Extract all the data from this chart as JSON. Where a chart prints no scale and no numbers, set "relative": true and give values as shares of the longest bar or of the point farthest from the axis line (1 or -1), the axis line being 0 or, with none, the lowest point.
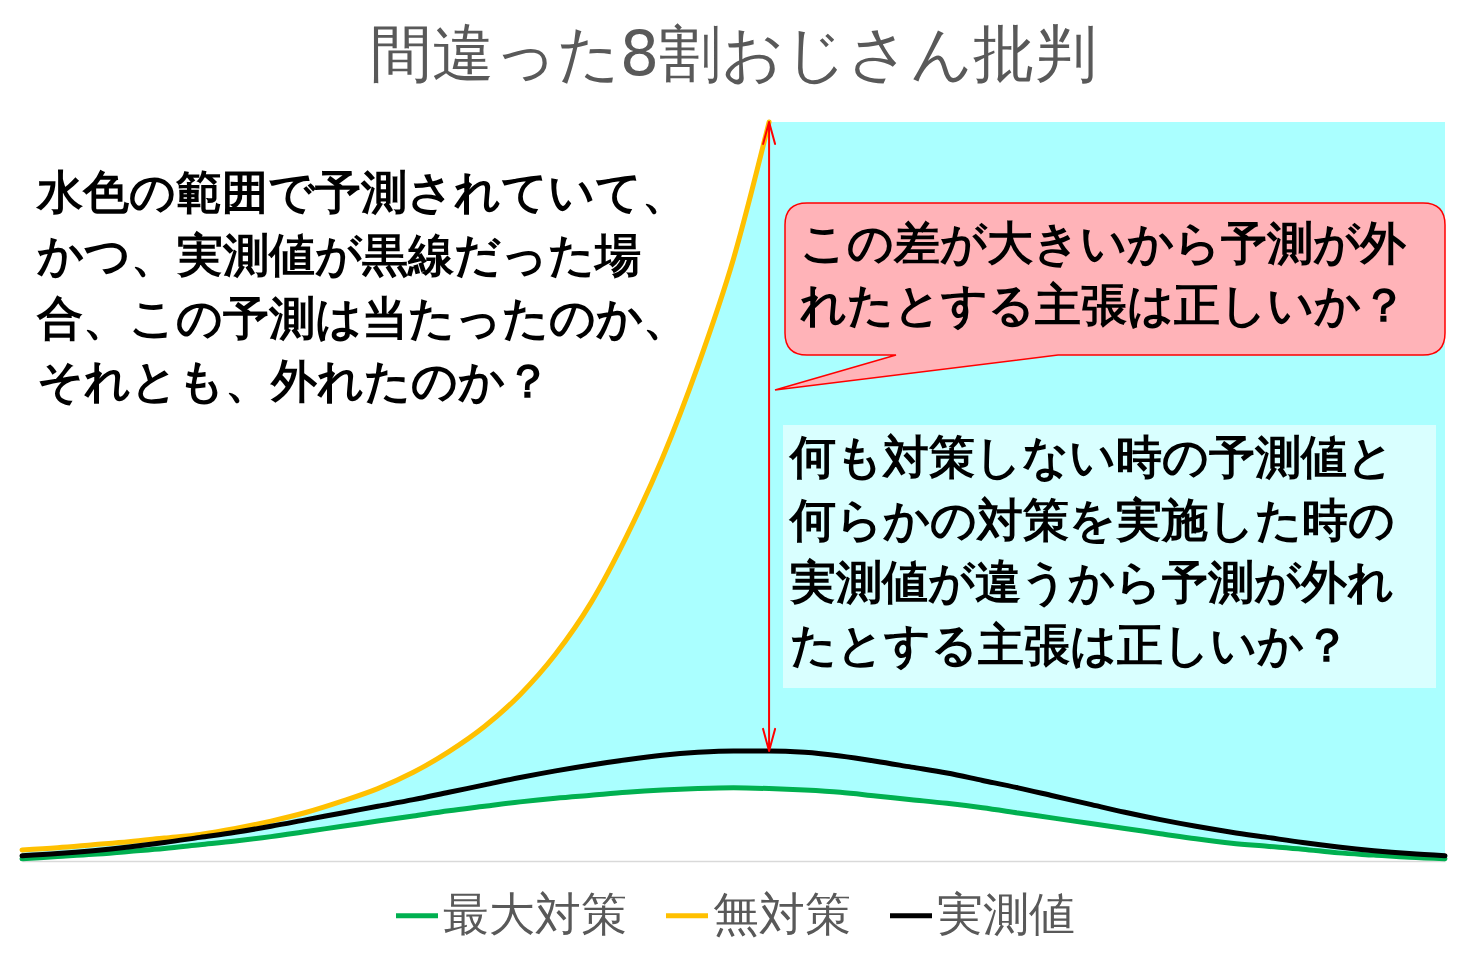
{
  "chart_data": {
    "type": "line",
    "title": "間違った8割おじさん批判",
    "relative": true,
    "categories": [
      null,
      null,
      null,
      null,
      null,
      null,
      null,
      null,
      null,
      null,
      null,
      null,
      null,
      null,
      null,
      null,
      null,
      null,
      null,
      null,
      null,
      null,
      null,
      null,
      null,
      null,
      null,
      null,
      null,
      null,
      null,
      null,
      null,
      null,
      null,
      null,
      null,
      null,
      null,
      null,
      null
    ],
    "series": [
      {
        "color": "#aaffff",
        "values": [
          null,
          null,
          null,
          null,
          null,
          null,
          null,
          null,
          null,
          null,
          null,
          null,
          null,
          null,
          null,
          null,
          null,
          null,
          null,
          null,
          null,
          null,
          null,
          null,
          null,
          null,
          null,
          null,
          null,
          null,
          null,
          null,
          null,
          null,
          null,
          null,
          null,
          null,
          null,
          null,
          null
        ],
        "upper": [
          0.015,
          0.018,
          0.022,
          0.026,
          0.031,
          0.036,
          0.044,
          0.054,
          0.066,
          0.081,
          0.098,
          0.12,
          0.148,
          0.182,
          0.225,
          0.28,
          0.35,
          0.44,
          0.545,
          0.67,
          0.815,
          1.0,
          1.0,
          1.0,
          1.0,
          1.0,
          1.0,
          1.0,
          1.0,
          1.0,
          1.0,
          1.0,
          1.0,
          1.0,
          1.0,
          1.0,
          1.0,
          1.0,
          1.0,
          1.0,
          1.0
        ],
        "lower": [
          0.003,
          0.006,
          0.009,
          0.013,
          0.017,
          0.022,
          0.027,
          0.033,
          0.04,
          0.047,
          0.054,
          0.061,
          0.068,
          0.074,
          0.08,
          0.085,
          0.089,
          0.093,
          0.096,
          0.098,
          0.099,
          0.098,
          0.096,
          0.093,
          0.088,
          0.083,
          0.078,
          0.072,
          0.065,
          0.058,
          0.051,
          0.044,
          0.037,
          0.03,
          0.024,
          0.02,
          0.016,
          0.011,
          0.008,
          0.005,
          0.003
        ]
      },
      {
        "name": "最大対策",
        "color": "#00b050",
        "values": [
          0.003,
          0.006,
          0.009,
          0.013,
          0.017,
          0.022,
          0.027,
          0.033,
          0.04,
          0.047,
          0.054,
          0.061,
          0.068,
          0.074,
          0.08,
          0.085,
          0.089,
          0.093,
          0.096,
          0.098,
          0.099,
          0.098,
          0.096,
          0.093,
          0.088,
          0.083,
          0.078,
          0.072,
          0.065,
          0.058,
          0.051,
          0.044,
          0.037,
          0.03,
          0.024,
          0.02,
          0.016,
          0.011,
          0.008,
          0.005,
          0.003
        ]
      },
      {
        "name": "無対策",
        "color": "#ffc000",
        "values": [
          0.015,
          0.018,
          0.022,
          0.026,
          0.031,
          0.036,
          0.044,
          0.054,
          0.066,
          0.081,
          0.098,
          0.12,
          0.148,
          0.182,
          0.225,
          0.28,
          0.35,
          0.44,
          0.545,
          0.67,
          0.815,
          1.0,
          null,
          null,
          null,
          null,
          null,
          null,
          null,
          null,
          null,
          null,
          null,
          null,
          null,
          null,
          null,
          null,
          null,
          null,
          null
        ]
      },
      {
        "name": "実測値",
        "color": "#000000",
        "values": [
          0.007,
          0.01,
          0.014,
          0.019,
          0.025,
          0.032,
          0.039,
          0.047,
          0.056,
          0.065,
          0.074,
          0.083,
          0.093,
          0.103,
          0.113,
          0.122,
          0.13,
          0.137,
          0.143,
          0.147,
          0.149,
          0.149,
          0.147,
          0.142,
          0.135,
          0.127,
          0.119,
          0.109,
          0.099,
          0.088,
          0.077,
          0.066,
          0.056,
          0.047,
          0.039,
          0.032,
          0.025,
          0.019,
          0.014,
          0.01,
          0.007
        ]
      }
    ],
    "annotations": [
      "水色の範囲で予測されていて、かつ、実測値が黒線だった場合、この予測は当たったのか、それとも、外れたのか？",
      "この差が大きいから予測が外れたとする主張は正しいか？",
      "何も対策しない時の予測値と何らかの対策を実施した時の実測値が違うから予測が外れたとする主張は正しいか？"
    ],
    "legend": "bottom"
  }
}
